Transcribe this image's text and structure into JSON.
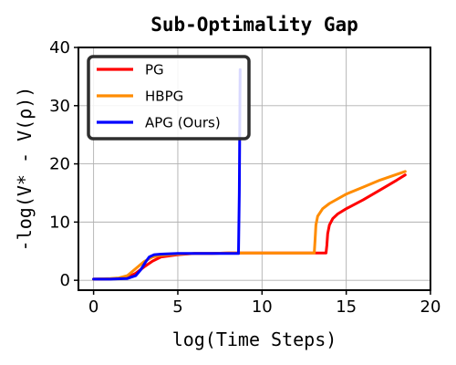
{
  "chart_data": {
    "type": "line",
    "title": "Sub-Optimality Gap",
    "xlabel": "log(Time Steps)",
    "ylabel": "-log(V* - V(ρ))",
    "xlim": [
      -0.9,
      20
    ],
    "ylim": [
      -1.7,
      40
    ],
    "xticks": [
      0,
      5,
      10,
      15,
      20
    ],
    "yticks": [
      0,
      10,
      20,
      30,
      40
    ],
    "grid": true,
    "legend_position": "top-left",
    "series": [
      {
        "name": "PG",
        "color": "#ff0000",
        "points": [
          [
            0,
            0.2
          ],
          [
            1,
            0.25
          ],
          [
            1.5,
            0.3
          ],
          [
            2,
            0.5
          ],
          [
            2.5,
            1.2
          ],
          [
            3,
            2.3
          ],
          [
            3.5,
            3.3
          ],
          [
            4,
            4.0
          ],
          [
            5,
            4.4
          ],
          [
            6,
            4.6
          ],
          [
            7,
            4.6
          ],
          [
            8,
            4.7
          ],
          [
            9,
            4.7
          ],
          [
            10,
            4.7
          ],
          [
            11,
            4.7
          ],
          [
            12,
            4.7
          ],
          [
            13,
            4.7
          ],
          [
            13.8,
            4.7
          ],
          [
            13.85,
            6
          ],
          [
            13.9,
            8
          ],
          [
            14,
            9.5
          ],
          [
            14.2,
            10.6
          ],
          [
            14.5,
            11.4
          ],
          [
            15,
            12.3
          ],
          [
            16,
            13.8
          ],
          [
            17,
            15.5
          ],
          [
            18,
            17.2
          ],
          [
            18.5,
            18.1
          ]
        ]
      },
      {
        "name": "HBPG",
        "color": "#ff8c00",
        "points": [
          [
            0,
            0.2
          ],
          [
            1,
            0.3
          ],
          [
            1.5,
            0.4
          ],
          [
            2,
            0.8
          ],
          [
            2.5,
            2.0
          ],
          [
            3,
            3.2
          ],
          [
            3.5,
            4.0
          ],
          [
            4,
            4.3
          ],
          [
            5,
            4.5
          ],
          [
            6,
            4.6
          ],
          [
            7,
            4.6
          ],
          [
            8,
            4.7
          ],
          [
            9,
            4.7
          ],
          [
            10,
            4.7
          ],
          [
            11,
            4.7
          ],
          [
            12,
            4.7
          ],
          [
            13,
            4.7
          ],
          [
            13.1,
            4.7
          ],
          [
            13.15,
            7
          ],
          [
            13.2,
            9.5
          ],
          [
            13.3,
            11
          ],
          [
            13.6,
            12.3
          ],
          [
            14,
            13.2
          ],
          [
            15,
            14.8
          ],
          [
            16,
            16.0
          ],
          [
            17,
            17.2
          ],
          [
            18,
            18.2
          ],
          [
            18.5,
            18.7
          ]
        ]
      },
      {
        "name": "APG (Ours)",
        "color": "#0000ff",
        "points": [
          [
            0,
            0.2
          ],
          [
            1,
            0.2
          ],
          [
            2,
            0.3
          ],
          [
            2.5,
            0.8
          ],
          [
            2.8,
            1.8
          ],
          [
            3.1,
            3.2
          ],
          [
            3.3,
            4.0
          ],
          [
            3.6,
            4.4
          ],
          [
            4,
            4.5
          ],
          [
            5,
            4.6
          ],
          [
            6,
            4.6
          ],
          [
            7,
            4.6
          ],
          [
            8,
            4.6
          ],
          [
            8.6,
            4.6
          ],
          [
            8.65,
            15
          ],
          [
            8.7,
            36.2
          ]
        ]
      }
    ]
  }
}
